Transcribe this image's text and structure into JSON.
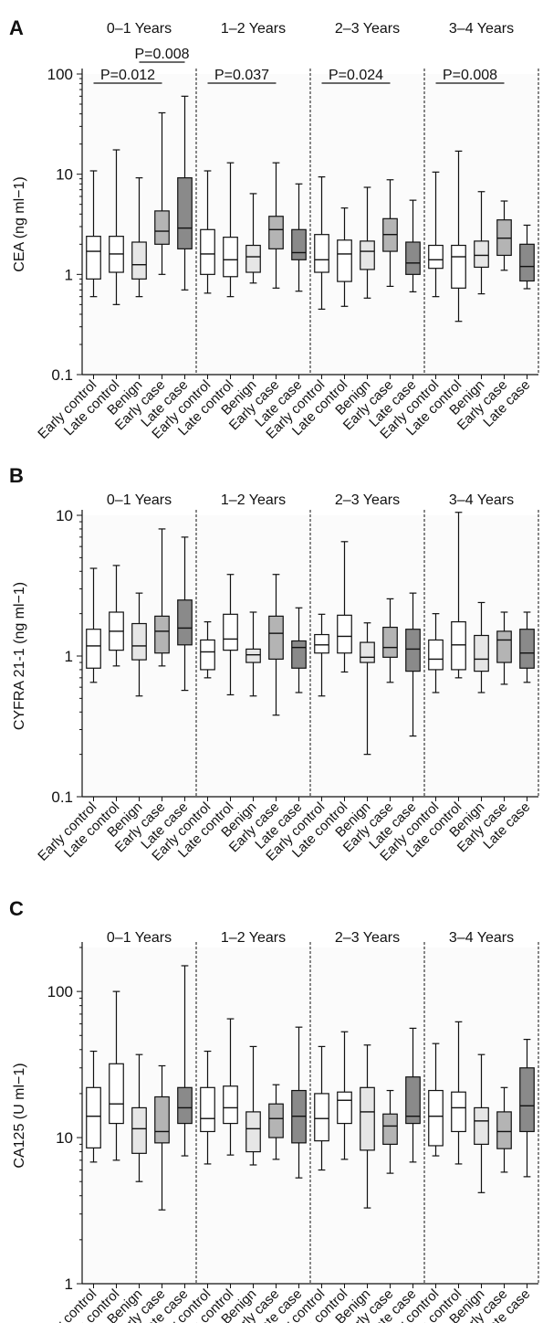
{
  "groups": [
    "Early control",
    "Late control",
    "Benign",
    "Early case",
    "Late case"
  ],
  "colors": {
    "Early control": "#ffffff",
    "Late control": "#ffffff",
    "Benign": "#e6e6e6",
    "Early case": "#b4b4b4",
    "Late case": "#8a8a8a"
  },
  "chart_data": [
    {
      "type": "boxplot",
      "panel": "A",
      "ylabel": "CEA (ng ml−1)",
      "yscale": "log",
      "ylim": [
        0.1,
        100
      ],
      "yticks": [
        0.1,
        1,
        10,
        100
      ],
      "periods": [
        "0–1 Years",
        "1–2 Years",
        "2–3 Years",
        "3–4 Years"
      ],
      "boxes": [
        [
          [
            0.6,
            0.9,
            1.7,
            2.4,
            10.8
          ],
          [
            0.5,
            1.05,
            1.6,
            2.4,
            17.5
          ],
          [
            0.6,
            0.9,
            1.25,
            2.1,
            9.2
          ],
          [
            1.0,
            2.0,
            2.7,
            4.3,
            41
          ],
          [
            0.7,
            1.8,
            2.9,
            9.2,
            60
          ]
        ],
        [
          [
            0.65,
            1.0,
            1.6,
            2.8,
            10.8
          ],
          [
            0.6,
            0.95,
            1.4,
            2.35,
            13
          ],
          [
            0.82,
            1.05,
            1.5,
            1.95,
            6.4
          ],
          [
            0.73,
            1.8,
            2.8,
            3.8,
            13
          ],
          [
            0.68,
            1.4,
            1.65,
            2.8,
            8
          ]
        ],
        [
          [
            0.45,
            1.05,
            1.4,
            2.5,
            9.4
          ],
          [
            0.48,
            0.85,
            1.6,
            2.2,
            4.6
          ],
          [
            0.58,
            1.12,
            1.7,
            2.15,
            7.4
          ],
          [
            0.76,
            1.7,
            2.5,
            3.6,
            8.8
          ],
          [
            0.67,
            1.0,
            1.3,
            2.1,
            5.5
          ]
        ],
        [
          [
            0.6,
            1.15,
            1.4,
            1.95,
            10.5
          ],
          [
            0.34,
            0.73,
            1.5,
            1.95,
            17
          ],
          [
            0.64,
            1.18,
            1.55,
            2.15,
            6.7
          ],
          [
            1.1,
            1.55,
            2.3,
            3.5,
            5.4
          ],
          [
            0.72,
            0.86,
            1.2,
            2.0,
            3.1
          ]
        ]
      ],
      "pvalues": [
        {
          "label": "P=0.012",
          "period": 0,
          "from": 0,
          "to": 3
        },
        {
          "label": "P=0.008",
          "period": 0,
          "from": 2,
          "to": 4
        },
        {
          "label": "P=0.037",
          "period": 1,
          "from": 0,
          "to": 3
        },
        {
          "label": "P=0.024",
          "period": 2,
          "from": 0,
          "to": 3
        },
        {
          "label": "P=0.008",
          "period": 3,
          "from": 0,
          "to": 3
        }
      ]
    },
    {
      "type": "boxplot",
      "panel": "B",
      "ylabel": "CYFRA 21-1 (ng ml−1)",
      "yscale": "log",
      "ylim": [
        0.1,
        10
      ],
      "yticks": [
        0.1,
        1,
        10
      ],
      "periods": [
        "0–1 Years",
        "1–2 Years",
        "2–3 Years",
        "3–4 Years"
      ],
      "boxes": [
        [
          [
            0.65,
            0.82,
            1.18,
            1.55,
            4.2
          ],
          [
            0.85,
            1.1,
            1.5,
            2.05,
            4.4
          ],
          [
            0.52,
            0.94,
            1.18,
            1.7,
            2.8
          ],
          [
            0.85,
            1.05,
            1.5,
            1.92,
            8.0
          ],
          [
            0.57,
            1.2,
            1.58,
            2.5,
            7.0
          ]
        ],
        [
          [
            0.7,
            0.8,
            1.07,
            1.3,
            1.75
          ],
          [
            0.53,
            1.1,
            1.32,
            1.98,
            3.8
          ],
          [
            0.52,
            0.9,
            1.02,
            1.12,
            2.05
          ],
          [
            0.38,
            0.95,
            1.45,
            1.92,
            3.8
          ],
          [
            0.55,
            0.82,
            1.15,
            1.28,
            2.2
          ]
        ],
        [
          [
            0.52,
            1.05,
            1.2,
            1.42,
            1.98
          ],
          [
            0.77,
            1.05,
            1.38,
            1.95,
            6.5
          ],
          [
            0.2,
            0.9,
            0.98,
            1.25,
            1.72
          ],
          [
            0.65,
            0.98,
            1.15,
            1.6,
            2.55
          ],
          [
            0.27,
            0.78,
            1.12,
            1.55,
            2.8
          ]
        ],
        [
          [
            0.55,
            0.8,
            0.95,
            1.3,
            2.0
          ],
          [
            0.7,
            0.8,
            1.2,
            1.75,
            10.5
          ],
          [
            0.55,
            0.78,
            0.95,
            1.4,
            2.4
          ],
          [
            0.63,
            0.9,
            1.3,
            1.5,
            2.05
          ],
          [
            0.65,
            0.82,
            1.05,
            1.55,
            2.05
          ]
        ]
      ],
      "pvalues": []
    },
    {
      "type": "boxplot",
      "panel": "C",
      "ylabel": "CA125 (U ml−1)",
      "yscale": "log",
      "ylim": [
        1,
        200
      ],
      "yticks": [
        1,
        10,
        100
      ],
      "periods": [
        "0–1 Years",
        "1–2 Years",
        "2–3 Years",
        "3–4 Years"
      ],
      "boxes": [
        [
          [
            6.8,
            8.5,
            14,
            22,
            39
          ],
          [
            7,
            12.5,
            17,
            32,
            100
          ],
          [
            5,
            7.8,
            11.5,
            16,
            37
          ],
          [
            3.2,
            9.2,
            11,
            19,
            31
          ],
          [
            7.5,
            12.5,
            16,
            22,
            150
          ]
        ],
        [
          [
            6.6,
            11,
            13.5,
            22,
            39
          ],
          [
            7.6,
            12.5,
            16,
            22.5,
            65
          ],
          [
            6.5,
            8,
            11.5,
            15,
            42
          ],
          [
            7.1,
            10,
            13.5,
            17,
            23
          ],
          [
            5.3,
            9.2,
            14,
            21,
            57
          ]
        ],
        [
          [
            6,
            9.5,
            13.5,
            20,
            42
          ],
          [
            7.1,
            12.5,
            18,
            20.5,
            53
          ],
          [
            3.3,
            8.2,
            15,
            22,
            43
          ],
          [
            5.7,
            9,
            12,
            14.5,
            21
          ],
          [
            6.8,
            12.5,
            14,
            26,
            56
          ]
        ],
        [
          [
            7.5,
            8.8,
            14,
            21,
            44
          ],
          [
            6.6,
            11,
            16,
            20.5,
            62
          ],
          [
            4.2,
            9,
            13,
            16,
            37
          ],
          [
            5.8,
            8.4,
            11,
            15,
            22
          ],
          [
            5.4,
            11,
            16.5,
            30,
            47
          ]
        ]
      ],
      "pvalues": []
    }
  ]
}
